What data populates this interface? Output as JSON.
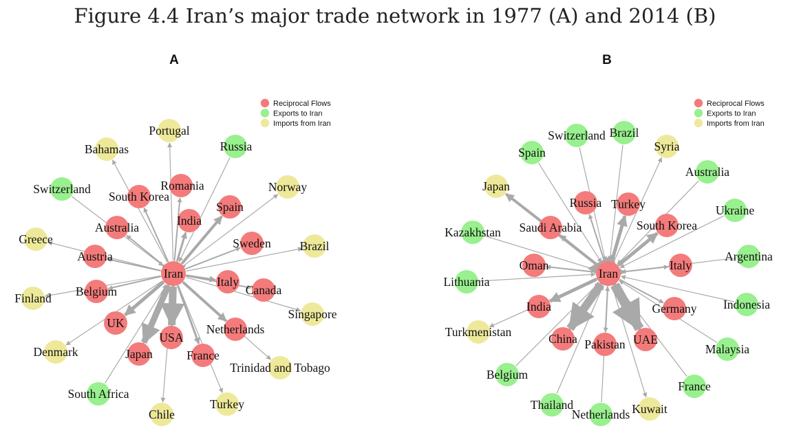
{
  "title": "Figure 4.4 Iran’s major trade network in 1977 (A) and 2014 (B)",
  "legend": [
    {
      "label": "Reciprocal Flows",
      "color": "#f47b7b"
    },
    {
      "label": "Exports to Iran",
      "color": "#98f08e"
    },
    {
      "label": "Imports from Iran",
      "color": "#eee99a"
    }
  ],
  "panels": [
    {
      "label": "A",
      "center": "Iran",
      "nodes": [
        {
          "name": "Iran",
          "type": "reciprocal"
        },
        {
          "name": "Portugal",
          "type": "imports"
        },
        {
          "name": "Bahamas",
          "type": "imports"
        },
        {
          "name": "Russia",
          "type": "exports"
        },
        {
          "name": "Switzerland",
          "type": "exports"
        },
        {
          "name": "Romania",
          "type": "reciprocal"
        },
        {
          "name": "South Korea",
          "type": "reciprocal"
        },
        {
          "name": "Norway",
          "type": "imports"
        },
        {
          "name": "India",
          "type": "reciprocal"
        },
        {
          "name": "Spain",
          "type": "reciprocal"
        },
        {
          "name": "Australia",
          "type": "reciprocal"
        },
        {
          "name": "Greece",
          "type": "imports"
        },
        {
          "name": "Sweden",
          "type": "reciprocal"
        },
        {
          "name": "Brazil",
          "type": "imports"
        },
        {
          "name": "Austria",
          "type": "reciprocal"
        },
        {
          "name": "Italy",
          "type": "reciprocal"
        },
        {
          "name": "Canada",
          "type": "reciprocal"
        },
        {
          "name": "Belgium",
          "type": "reciprocal"
        },
        {
          "name": "Finland",
          "type": "imports"
        },
        {
          "name": "Singapore",
          "type": "imports"
        },
        {
          "name": "UK",
          "type": "reciprocal"
        },
        {
          "name": "Netherlands",
          "type": "reciprocal"
        },
        {
          "name": "USA",
          "type": "reciprocal"
        },
        {
          "name": "Denmark",
          "type": "imports"
        },
        {
          "name": "Japan",
          "type": "reciprocal"
        },
        {
          "name": "France",
          "type": "reciprocal"
        },
        {
          "name": "Trinidad and Tobago",
          "type": "imports"
        },
        {
          "name": "South Africa",
          "type": "exports"
        },
        {
          "name": "Turkey",
          "type": "imports"
        },
        {
          "name": "Chile",
          "type": "imports"
        }
      ]
    },
    {
      "label": "B",
      "center": "Iran",
      "nodes": [
        {
          "name": "Iran",
          "type": "reciprocal"
        },
        {
          "name": "Brazil",
          "type": "exports"
        },
        {
          "name": "Switzerland",
          "type": "exports"
        },
        {
          "name": "Syria",
          "type": "imports"
        },
        {
          "name": "Spain",
          "type": "exports"
        },
        {
          "name": "Australia",
          "type": "exports"
        },
        {
          "name": "Japan",
          "type": "imports"
        },
        {
          "name": "Russia",
          "type": "reciprocal"
        },
        {
          "name": "Turkey",
          "type": "reciprocal"
        },
        {
          "name": "Ukraine",
          "type": "exports"
        },
        {
          "name": "Kazakhstan",
          "type": "exports"
        },
        {
          "name": "Saudi Arabia",
          "type": "reciprocal"
        },
        {
          "name": "South Korea",
          "type": "reciprocal"
        },
        {
          "name": "Argentina",
          "type": "exports"
        },
        {
          "name": "Oman",
          "type": "reciprocal"
        },
        {
          "name": "Italy",
          "type": "reciprocal"
        },
        {
          "name": "Lithuania",
          "type": "exports"
        },
        {
          "name": "Indonesia",
          "type": "exports"
        },
        {
          "name": "India",
          "type": "reciprocal"
        },
        {
          "name": "Germany",
          "type": "reciprocal"
        },
        {
          "name": "Turkmenistan",
          "type": "imports"
        },
        {
          "name": "China",
          "type": "reciprocal"
        },
        {
          "name": "Pakistan",
          "type": "reciprocal"
        },
        {
          "name": "UAE",
          "type": "reciprocal"
        },
        {
          "name": "Malaysia",
          "type": "exports"
        },
        {
          "name": "Belgium",
          "type": "exports"
        },
        {
          "name": "France",
          "type": "exports"
        },
        {
          "name": "Thailand",
          "type": "exports"
        },
        {
          "name": "Netherlands",
          "type": "exports"
        },
        {
          "name": "Kuwait",
          "type": "imports"
        }
      ]
    }
  ]
}
